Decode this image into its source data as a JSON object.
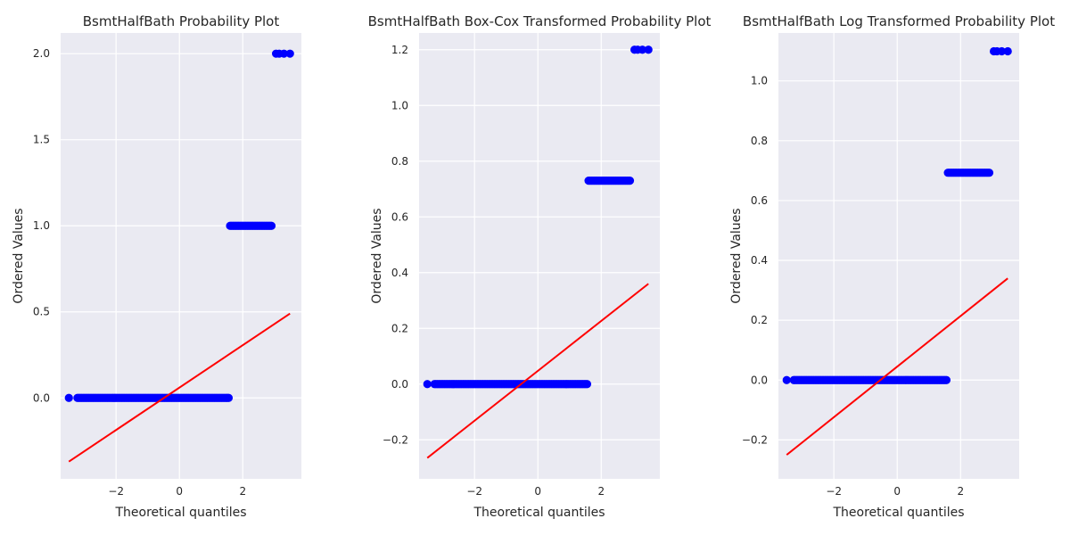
{
  "colors": {
    "points": "#0000ff",
    "fit_line": "#ff0000",
    "plot_background": "#eaeaf2",
    "grid": "#ffffff",
    "text": "#262626"
  },
  "chart_data": [
    {
      "type": "scatter",
      "title": "BsmtHalfBath Probability Plot",
      "xlabel": "Theoretical quantiles",
      "ylabel": "Ordered Values",
      "xlim": [
        -3.75,
        3.85
      ],
      "ylim": [
        -0.47,
        2.12
      ],
      "xticks": [
        -2,
        0,
        2
      ],
      "xtick_labels": [
        "−2",
        "0",
        "2"
      ],
      "yticks": [
        0.0,
        0.5,
        1.0,
        1.5,
        2.0
      ],
      "ytick_labels": [
        "0.0",
        "0.5",
        "1.0",
        "1.5",
        "2.0"
      ],
      "grid": true,
      "point_clusters": [
        {
          "y": 0.0,
          "x_start": -3.49,
          "x_end": 1.58
        },
        {
          "y": 1.0,
          "x_start": 1.6,
          "x_end": 2.95
        }
      ],
      "points": [
        {
          "x": 3.05,
          "y": 2.0
        },
        {
          "x": 3.15,
          "y": 2.0
        },
        {
          "x": 3.3,
          "y": 2.0
        },
        {
          "x": 3.49,
          "y": 2.0
        }
      ],
      "fit_line": {
        "x": [
          -3.49,
          3.49
        ],
        "y": [
          -0.37,
          0.49
        ]
      }
    },
    {
      "type": "scatter",
      "title": "BsmtHalfBath Box-Cox Transformed Probability Plot",
      "xlabel": "Theoretical quantiles",
      "ylabel": "Ordered Values",
      "xlim": [
        -3.75,
        3.85
      ],
      "ylim": [
        -0.34,
        1.26
      ],
      "xticks": [
        -2,
        0,
        2
      ],
      "xtick_labels": [
        "−2",
        "0",
        "2"
      ],
      "yticks": [
        -0.2,
        0.0,
        0.2,
        0.4,
        0.6,
        0.8,
        1.0,
        1.2
      ],
      "ytick_labels": [
        "−0.2",
        "0.0",
        "0.2",
        "0.4",
        "0.6",
        "0.8",
        "1.0",
        "1.2"
      ],
      "grid": true,
      "point_clusters": [
        {
          "y": 0.0,
          "x_start": -3.49,
          "x_end": 1.58
        },
        {
          "y": 0.73,
          "x_start": 1.6,
          "x_end": 2.95
        }
      ],
      "points": [
        {
          "x": 3.05,
          "y": 1.2
        },
        {
          "x": 3.15,
          "y": 1.2
        },
        {
          "x": 3.3,
          "y": 1.2
        },
        {
          "x": 3.49,
          "y": 1.2
        }
      ],
      "fit_line": {
        "x": [
          -3.49,
          3.49
        ],
        "y": [
          -0.265,
          0.36
        ]
      }
    },
    {
      "type": "scatter",
      "title": "BsmtHalfBath Log Transformed Probability Plot",
      "xlabel": "Theoretical quantiles",
      "ylabel": "Ordered Values",
      "xlim": [
        -3.75,
        3.85
      ],
      "ylim": [
        -0.33,
        1.16
      ],
      "xticks": [
        -2,
        0,
        2
      ],
      "xtick_labels": [
        "−2",
        "0",
        "2"
      ],
      "yticks": [
        -0.2,
        0.0,
        0.2,
        0.4,
        0.6,
        0.8,
        1.0
      ],
      "ytick_labels": [
        "−0.2",
        "0.0",
        "0.2",
        "0.4",
        "0.6",
        "0.8",
        "1.0"
      ],
      "grid": true,
      "point_clusters": [
        {
          "y": 0.0,
          "x_start": -3.49,
          "x_end": 1.58
        },
        {
          "y": 0.693,
          "x_start": 1.6,
          "x_end": 2.95
        }
      ],
      "points": [
        {
          "x": 3.05,
          "y": 1.099
        },
        {
          "x": 3.15,
          "y": 1.099
        },
        {
          "x": 3.3,
          "y": 1.099
        },
        {
          "x": 3.49,
          "y": 1.099
        }
      ],
      "fit_line": {
        "x": [
          -3.49,
          3.49
        ],
        "y": [
          -0.25,
          0.34
        ]
      }
    }
  ]
}
